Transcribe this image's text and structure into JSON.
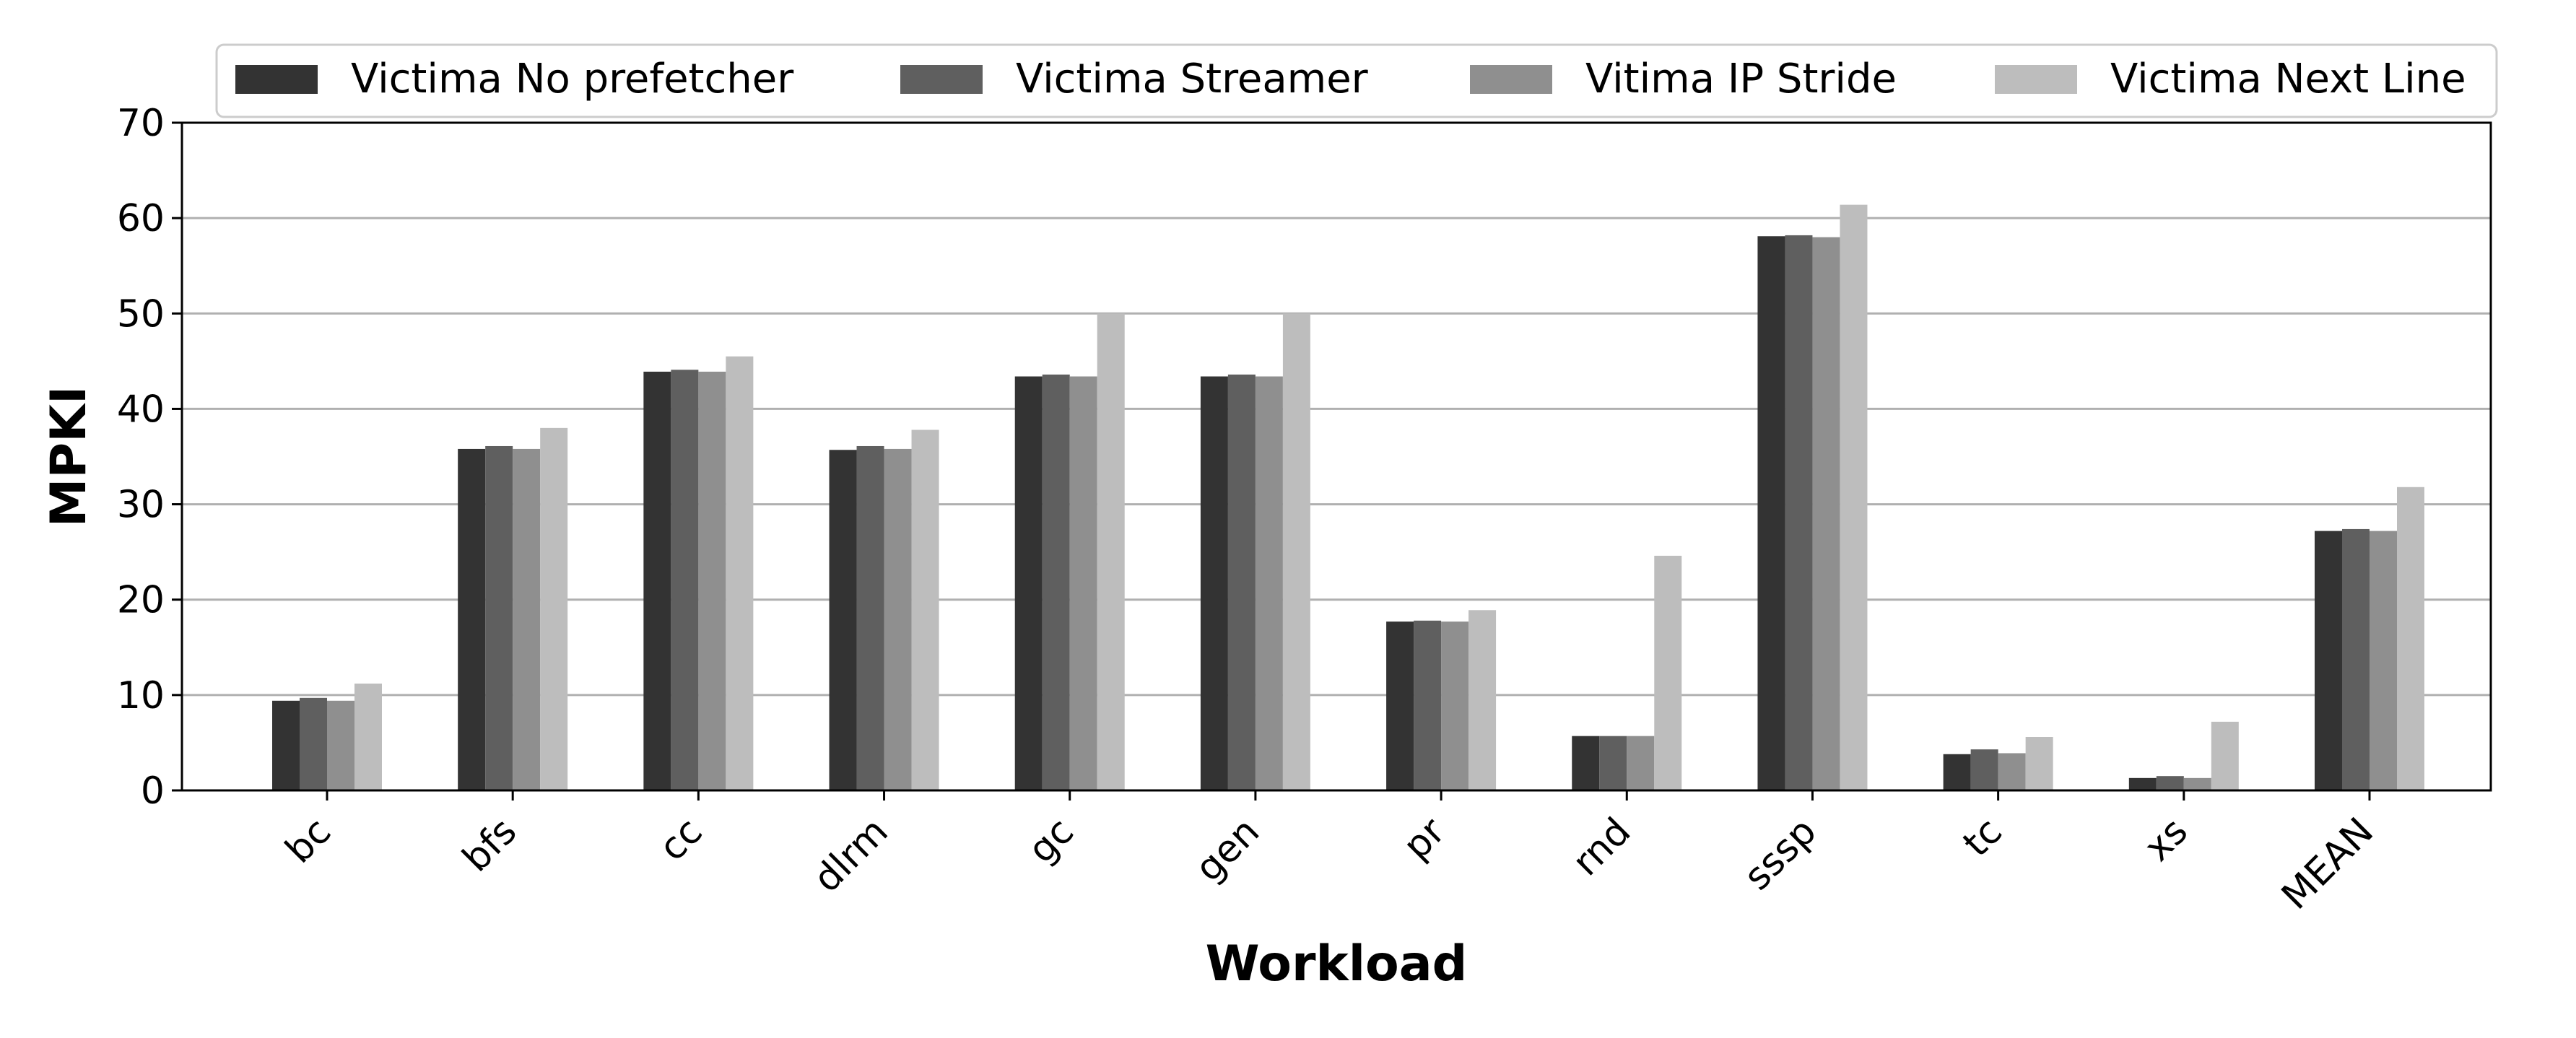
{
  "chart_data": {
    "type": "bar",
    "title": "",
    "xlabel": "Workload",
    "ylabel": "MPKI",
    "ylim": [
      0,
      70
    ],
    "yticks": [
      0,
      10,
      20,
      30,
      40,
      50,
      60,
      70
    ],
    "grid": "horizontal",
    "legend_position": "top",
    "categories": [
      "bc",
      "bfs",
      "cc",
      "dlrm",
      "gc",
      "gen",
      "pr",
      "rnd",
      "sssp",
      "tc",
      "xs",
      "MEAN"
    ],
    "series": [
      {
        "name": "Victima No prefetcher",
        "color": "#333333",
        "values": [
          9.4,
          35.8,
          43.9,
          35.7,
          43.4,
          43.4,
          17.7,
          5.7,
          58.1,
          3.8,
          1.3,
          27.2
        ]
      },
      {
        "name": "Victima Streamer",
        "color": "#5f5f5f",
        "values": [
          9.7,
          36.1,
          44.1,
          36.1,
          43.6,
          43.6,
          17.8,
          5.7,
          58.2,
          4.3,
          1.5,
          27.4
        ]
      },
      {
        "name": "Vitima IP Stride",
        "color": "#8f8f8f",
        "values": [
          9.4,
          35.8,
          43.9,
          35.8,
          43.4,
          43.4,
          17.7,
          5.7,
          58.0,
          3.9,
          1.3,
          27.2
        ]
      },
      {
        "name": "Victima Next Line",
        "color": "#bdbdbd",
        "values": [
          11.2,
          38.0,
          45.5,
          37.8,
          50.0,
          50.0,
          18.9,
          24.6,
          61.4,
          5.6,
          7.2,
          31.8
        ]
      }
    ]
  }
}
